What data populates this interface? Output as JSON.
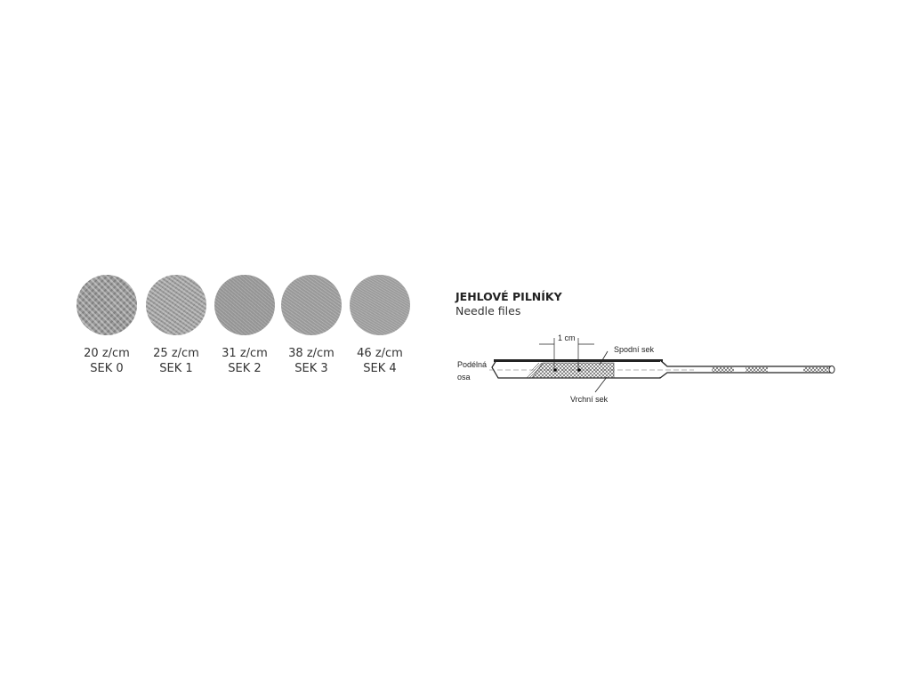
{
  "cuts": [
    {
      "density": "20 z/cm",
      "grade": "SEK 0"
    },
    {
      "density": "25 z/cm",
      "grade": "SEK 1"
    },
    {
      "density": "31 z/cm",
      "grade": "SEK 2"
    },
    {
      "density": "38 z/cm",
      "grade": "SEK 3"
    },
    {
      "density": "46 z/cm",
      "grade": "SEK 4"
    }
  ],
  "diagram": {
    "title": "JEHLOVÉ PILNÍKY",
    "subtitle": "Needle files",
    "labels": {
      "measure": "1 cm",
      "lower_cut": "Spodní sek",
      "axis_line1": "Podélná",
      "axis_line2": "osa",
      "upper_cut": "Vrchní sek"
    }
  }
}
